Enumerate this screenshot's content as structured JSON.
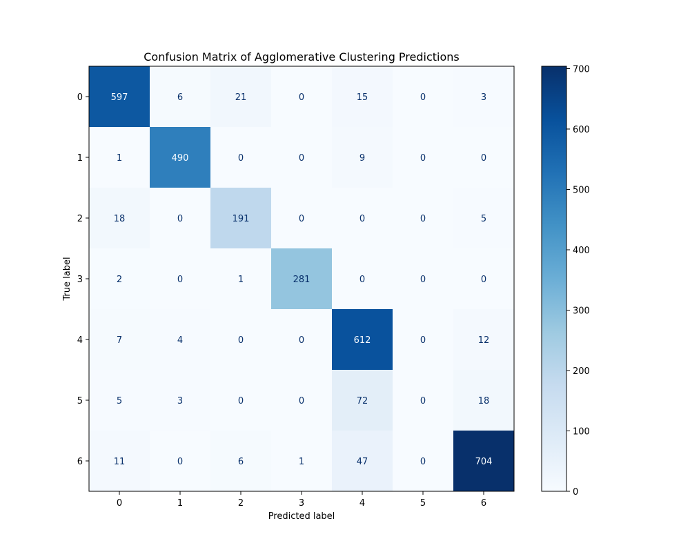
{
  "chart_data": {
    "type": "heatmap",
    "title": "Confusion Matrix of Agglomerative Clustering Predictions",
    "xlabel": "Predicted label",
    "ylabel": "True label",
    "x_categories": [
      "0",
      "1",
      "2",
      "3",
      "4",
      "5",
      "6"
    ],
    "y_categories": [
      "0",
      "1",
      "2",
      "3",
      "4",
      "5",
      "6"
    ],
    "matrix": [
      [
        597,
        6,
        21,
        0,
        15,
        0,
        3
      ],
      [
        1,
        490,
        0,
        0,
        9,
        0,
        0
      ],
      [
        18,
        0,
        191,
        0,
        0,
        0,
        5
      ],
      [
        2,
        0,
        1,
        281,
        0,
        0,
        0
      ],
      [
        7,
        4,
        0,
        0,
        612,
        0,
        12
      ],
      [
        5,
        3,
        0,
        0,
        72,
        0,
        18
      ],
      [
        11,
        0,
        6,
        1,
        47,
        0,
        704
      ]
    ],
    "colorbar": {
      "colormap": "Blues",
      "min": 0,
      "max": 704,
      "ticks": [
        "0",
        "100",
        "200",
        "300",
        "400",
        "500",
        "600",
        "700"
      ]
    },
    "grid": false
  }
}
